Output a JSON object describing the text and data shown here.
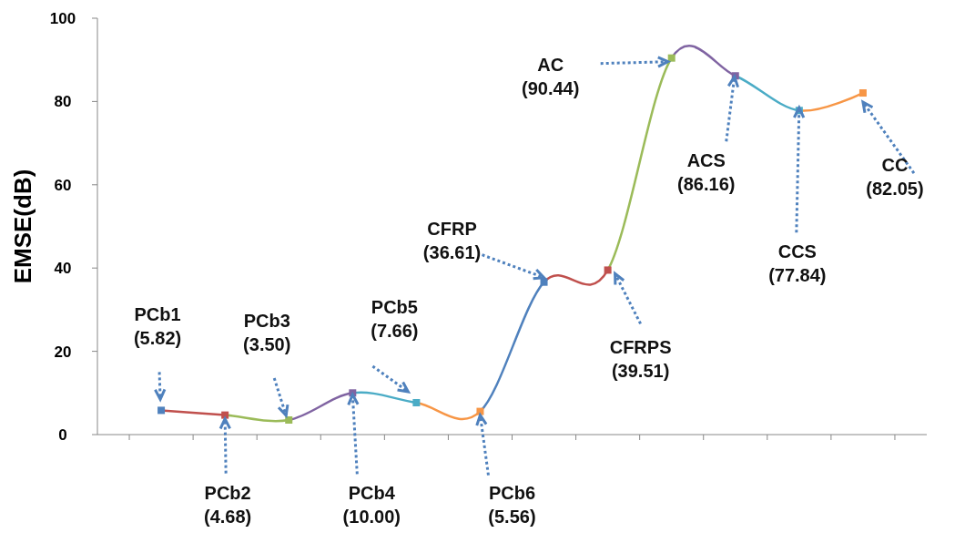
{
  "chart_data": {
    "type": "line",
    "ylabel": "EMSE(dB)",
    "categories": [
      null,
      null,
      null,
      null,
      null,
      null,
      null,
      null,
      null,
      null,
      null,
      null
    ],
    "series": [
      {
        "values": [
          5.82,
          4.68,
          3.5,
          10.0,
          7.66,
          5.56,
          36.61,
          39.51,
          90.44,
          86.16,
          77.84,
          82.05
        ],
        "colors": [
          "#4f81bd",
          "#c0504d",
          "#9bbb59",
          "#8064a2",
          "#4bacc6",
          "#f79646",
          "#4f81bd",
          "#c0504d",
          "#9bbb59",
          "#8064a2",
          "#4bacc6",
          "#f79646"
        ],
        "value_labels": [
          "PCb1\n(5.82)",
          "PCb2\n(4.68)",
          "PCb3\n(3.50)",
          "PCb4\n(10.00)",
          "PCb5\n(7.66)",
          "PCb6\n(5.56)",
          "CFRP\n(36.61)",
          "CFRPS\n(39.51)",
          "AC\n(90.44)",
          "ACS\n(86.16)",
          "CCS\n(77.84)",
          "CC\n(82.05)"
        ]
      }
    ],
    "ylim": [
      0,
      100
    ],
    "yticks": [
      0,
      20,
      40,
      60,
      80,
      100
    ],
    "grid": false,
    "marker": "square",
    "line_style": "solid"
  }
}
